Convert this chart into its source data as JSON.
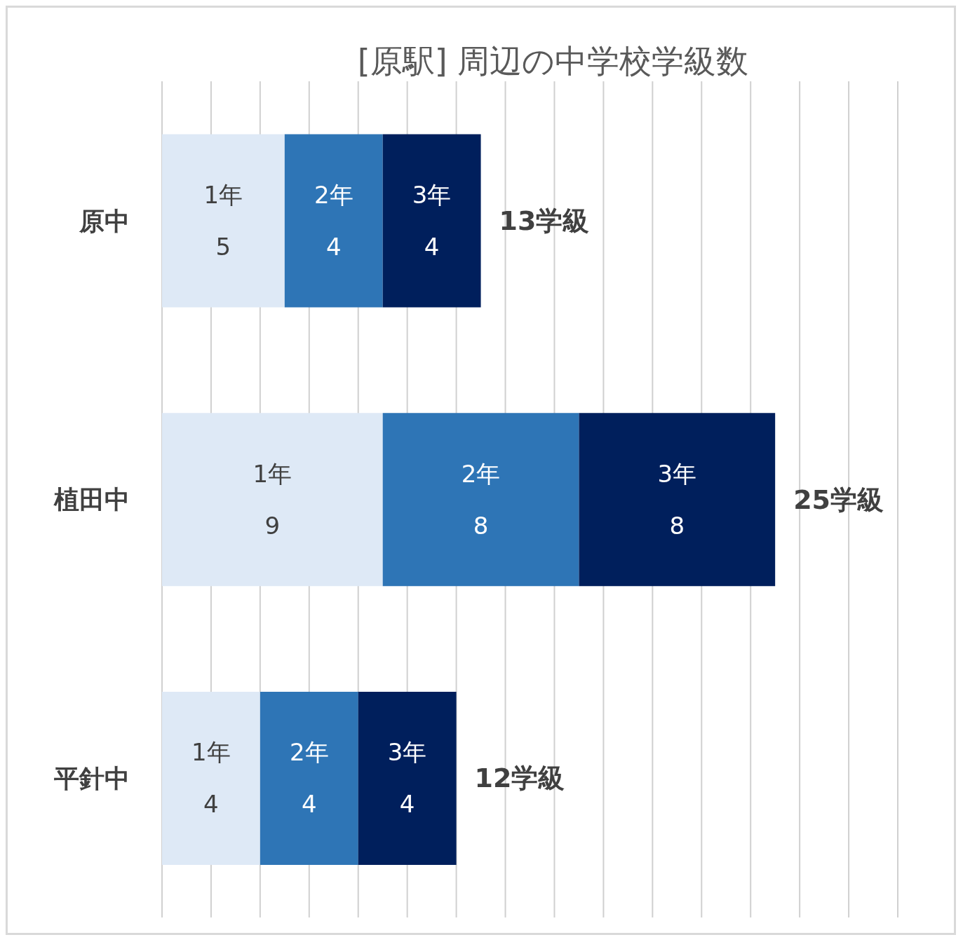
{
  "chart_data": {
    "type": "bar",
    "title": "[原駅] 周辺の中学校学級数",
    "orientation": "horizontal",
    "stacked": true,
    "categories": [
      "原中",
      "植田中",
      "平針中"
    ],
    "series": [
      {
        "name": "1年",
        "color": "#dee9f6",
        "values": [
          5,
          9,
          4
        ]
      },
      {
        "name": "2年",
        "color": "#2e75b6",
        "values": [
          4,
          8,
          4
        ]
      },
      {
        "name": "3年",
        "color": "#001f5c",
        "values": [
          4,
          8,
          4
        ]
      }
    ],
    "xlim": [
      0,
      30
    ],
    "xticks": [
      0,
      2,
      4,
      6,
      8,
      10,
      12,
      14,
      16,
      18,
      20,
      22,
      24,
      26,
      28,
      30
    ],
    "tick_labels": "y",
    "grid": "x",
    "legend": false,
    "data_labels": true,
    "totals": [
      "13学級",
      "25学級",
      "12学級"
    ]
  }
}
